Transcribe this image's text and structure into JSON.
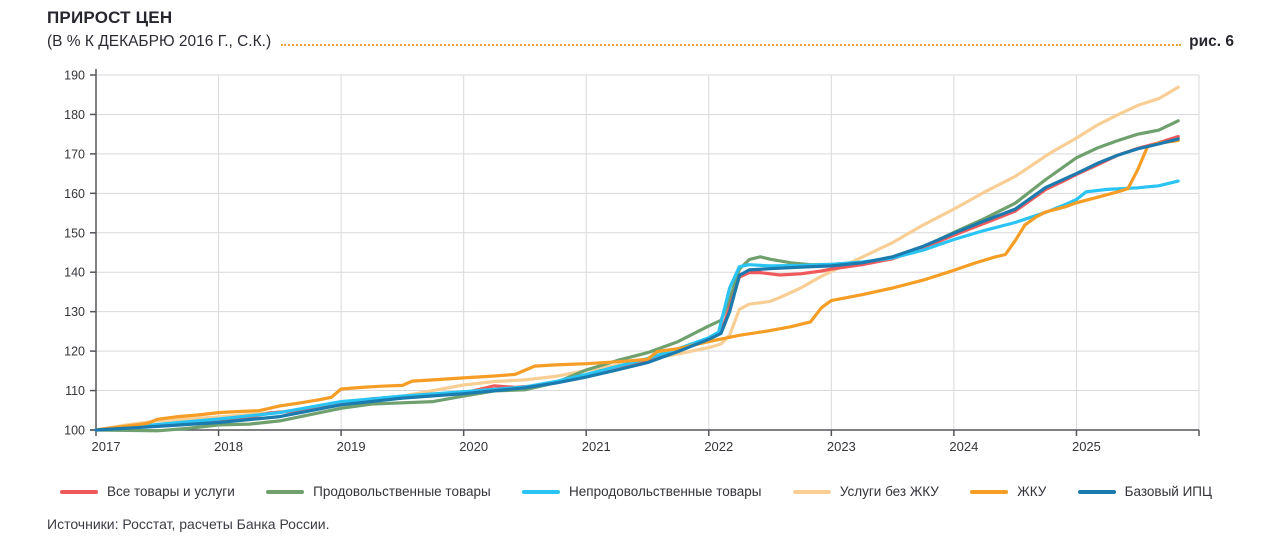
{
  "header": {
    "title": "ПРИРОСТ ЦЕН",
    "subtitle": "(В % К ДЕКАБРЮ 2016 Г., С.К.)",
    "figure_label": "рис. 6"
  },
  "source": "Источники: Росстат, расчеты Банка России.",
  "chart_data": {
    "type": "line",
    "title": "ПРИРОСТ ЦЕН (В % К ДЕКАБРЮ 2016 Г., С.К.)",
    "xlabel": "",
    "ylabel": "",
    "ylim": [
      100,
      190
    ],
    "xlim": [
      2017,
      2026
    ],
    "y_ticks": [
      100,
      110,
      120,
      130,
      140,
      150,
      160,
      170,
      180,
      190
    ],
    "x_ticks": [
      2017,
      2018,
      2019,
      2020,
      2021,
      2022,
      2023,
      2024,
      2025
    ],
    "grid": "both",
    "legend_position": "bottom",
    "axis_color": "#55555c",
    "grid_color": "#d9d9dc",
    "series": [
      {
        "name": "Все товары и услуги",
        "color": "#f0595c",
        "z": 2,
        "points": [
          [
            2017.0,
            100
          ],
          [
            2017.25,
            100.7
          ],
          [
            2017.5,
            101.2
          ],
          [
            2017.75,
            101.8
          ],
          [
            2018.0,
            102.5
          ],
          [
            2018.25,
            103.3
          ],
          [
            2018.42,
            104.3
          ],
          [
            2018.58,
            104.7
          ],
          [
            2018.75,
            105.4
          ],
          [
            2019.0,
            106.8
          ],
          [
            2019.25,
            107.9
          ],
          [
            2019.5,
            108.4
          ],
          [
            2019.75,
            108.9
          ],
          [
            2020.0,
            109.4
          ],
          [
            2020.17,
            110.6
          ],
          [
            2020.25,
            111.2
          ],
          [
            2020.42,
            110.8
          ],
          [
            2020.58,
            111.2
          ],
          [
            2020.75,
            112.1
          ],
          [
            2021.0,
            113.7
          ],
          [
            2021.25,
            115.4
          ],
          [
            2021.5,
            117.4
          ],
          [
            2021.75,
            120.2
          ],
          [
            2022.0,
            123.2
          ],
          [
            2022.1,
            124.8
          ],
          [
            2022.17,
            131
          ],
          [
            2022.25,
            138.8
          ],
          [
            2022.33,
            139.9
          ],
          [
            2022.42,
            139.9
          ],
          [
            2022.5,
            139.6
          ],
          [
            2022.58,
            139.3
          ],
          [
            2022.75,
            139.6
          ],
          [
            2022.92,
            140.3
          ],
          [
            2023.0,
            140.8
          ],
          [
            2023.25,
            141.9
          ],
          [
            2023.5,
            143.4
          ],
          [
            2023.75,
            146.2
          ],
          [
            2024.0,
            149.4
          ],
          [
            2024.25,
            152.4
          ],
          [
            2024.5,
            155.5
          ],
          [
            2024.75,
            161
          ],
          [
            2024.92,
            163.5
          ],
          [
            2025.0,
            164.8
          ],
          [
            2025.17,
            167.2
          ],
          [
            2025.33,
            169.6
          ],
          [
            2025.5,
            171.4
          ],
          [
            2025.67,
            172.8
          ],
          [
            2025.83,
            174.4
          ]
        ]
      },
      {
        "name": "Продовольственные товары",
        "color": "#6fa06e",
        "z": 1,
        "points": [
          [
            2017.0,
            100
          ],
          [
            2017.25,
            99.9
          ],
          [
            2017.5,
            99.8
          ],
          [
            2017.75,
            100.4
          ],
          [
            2018.0,
            101.3
          ],
          [
            2018.25,
            101.5
          ],
          [
            2018.5,
            102.3
          ],
          [
            2018.75,
            103.9
          ],
          [
            2019.0,
            105.5
          ],
          [
            2019.25,
            106.6
          ],
          [
            2019.5,
            106.9
          ],
          [
            2019.75,
            107.2
          ],
          [
            2020.0,
            108.6
          ],
          [
            2020.25,
            109.9
          ],
          [
            2020.5,
            110.2
          ],
          [
            2020.75,
            112
          ],
          [
            2021.0,
            115.2
          ],
          [
            2021.25,
            117.6
          ],
          [
            2021.5,
            119.6
          ],
          [
            2021.75,
            122.4
          ],
          [
            2022.0,
            126.4
          ],
          [
            2022.1,
            127.8
          ],
          [
            2022.17,
            133
          ],
          [
            2022.25,
            140.8
          ],
          [
            2022.33,
            143.2
          ],
          [
            2022.42,
            143.9
          ],
          [
            2022.5,
            143.3
          ],
          [
            2022.67,
            142.4
          ],
          [
            2022.83,
            141.9
          ],
          [
            2023.0,
            142
          ],
          [
            2023.25,
            142.4
          ],
          [
            2023.5,
            143.6
          ],
          [
            2023.75,
            146.4
          ],
          [
            2024.0,
            150.1
          ],
          [
            2024.25,
            153.6
          ],
          [
            2024.5,
            157.5
          ],
          [
            2024.75,
            163.5
          ],
          [
            2025.0,
            169
          ],
          [
            2025.17,
            171.5
          ],
          [
            2025.33,
            173.3
          ],
          [
            2025.5,
            175
          ],
          [
            2025.67,
            176
          ],
          [
            2025.83,
            178.4
          ]
        ]
      },
      {
        "name": "Непродовольственные товары",
        "color": "#2ac4f4",
        "z": 3,
        "points": [
          [
            2017.0,
            100
          ],
          [
            2017.5,
            101.4
          ],
          [
            2018.0,
            102.8
          ],
          [
            2018.5,
            104.4
          ],
          [
            2019.0,
            107.2
          ],
          [
            2019.5,
            108.6
          ],
          [
            2020.0,
            109.7
          ],
          [
            2020.5,
            110.9
          ],
          [
            2020.75,
            112.3
          ],
          [
            2021.0,
            114.1
          ],
          [
            2021.25,
            116.1
          ],
          [
            2021.5,
            118.1
          ],
          [
            2021.75,
            120.6
          ],
          [
            2022.0,
            123.4
          ],
          [
            2022.08,
            124.8
          ],
          [
            2022.17,
            136
          ],
          [
            2022.25,
            141.4
          ],
          [
            2022.33,
            141.9
          ],
          [
            2022.5,
            141.6
          ],
          [
            2022.75,
            141.7
          ],
          [
            2023.0,
            142
          ],
          [
            2023.25,
            142.6
          ],
          [
            2023.5,
            143.6
          ],
          [
            2023.75,
            145.6
          ],
          [
            2024.0,
            148.3
          ],
          [
            2024.25,
            150.6
          ],
          [
            2024.5,
            152.6
          ],
          [
            2024.75,
            155.2
          ],
          [
            2024.92,
            157.3
          ],
          [
            2025.0,
            158.4
          ],
          [
            2025.08,
            160.4
          ],
          [
            2025.25,
            161
          ],
          [
            2025.5,
            161.4
          ],
          [
            2025.67,
            161.9
          ],
          [
            2025.83,
            163.1
          ]
        ]
      },
      {
        "name": "Услуги без ЖКУ",
        "color": "#f8ce95",
        "z": 0,
        "points": [
          [
            2017.0,
            100
          ],
          [
            2017.25,
            101.3
          ],
          [
            2017.5,
            102.3
          ],
          [
            2017.75,
            102.8
          ],
          [
            2018.0,
            103.3
          ],
          [
            2018.25,
            103.9
          ],
          [
            2018.5,
            104.6
          ],
          [
            2018.75,
            105.4
          ],
          [
            2019.0,
            106.3
          ],
          [
            2019.25,
            107.3
          ],
          [
            2019.5,
            108.6
          ],
          [
            2019.75,
            110
          ],
          [
            2020.0,
            111.4
          ],
          [
            2020.25,
            112.3
          ],
          [
            2020.5,
            112.7
          ],
          [
            2020.75,
            113.6
          ],
          [
            2021.0,
            115.1
          ],
          [
            2021.25,
            116.4
          ],
          [
            2021.5,
            117.9
          ],
          [
            2021.75,
            119.3
          ],
          [
            2022.0,
            120.9
          ],
          [
            2022.1,
            121.8
          ],
          [
            2022.17,
            124
          ],
          [
            2022.25,
            130.6
          ],
          [
            2022.33,
            131.9
          ],
          [
            2022.5,
            132.6
          ],
          [
            2022.58,
            133.6
          ],
          [
            2022.75,
            136
          ],
          [
            2022.92,
            139
          ],
          [
            2023.0,
            140.2
          ],
          [
            2023.25,
            143.8
          ],
          [
            2023.5,
            147.5
          ],
          [
            2023.75,
            152
          ],
          [
            2024.0,
            156
          ],
          [
            2024.25,
            160.3
          ],
          [
            2024.5,
            164.3
          ],
          [
            2024.75,
            169.5
          ],
          [
            2024.83,
            171
          ],
          [
            2025.0,
            174
          ],
          [
            2025.17,
            177.3
          ],
          [
            2025.33,
            179.8
          ],
          [
            2025.5,
            182.3
          ],
          [
            2025.67,
            184
          ],
          [
            2025.83,
            186.9
          ]
        ]
      },
      {
        "name": "ЖКУ",
        "color": "#f59d25",
        "z": 4,
        "points": [
          [
            2017.0,
            100
          ],
          [
            2017.17,
            100.7
          ],
          [
            2017.33,
            101.3
          ],
          [
            2017.42,
            101.7
          ],
          [
            2017.5,
            102.7
          ],
          [
            2017.67,
            103.4
          ],
          [
            2017.83,
            103.8
          ],
          [
            2018.0,
            104.4
          ],
          [
            2018.17,
            104.7
          ],
          [
            2018.33,
            104.9
          ],
          [
            2018.5,
            106.1
          ],
          [
            2018.67,
            106.9
          ],
          [
            2018.83,
            107.7
          ],
          [
            2018.92,
            108.3
          ],
          [
            2019.0,
            110.4
          ],
          [
            2019.17,
            110.8
          ],
          [
            2019.33,
            111.1
          ],
          [
            2019.5,
            111.3
          ],
          [
            2019.58,
            112.4
          ],
          [
            2019.75,
            112.7
          ],
          [
            2020.0,
            113.2
          ],
          [
            2020.25,
            113.7
          ],
          [
            2020.42,
            114.1
          ],
          [
            2020.58,
            116.2
          ],
          [
            2020.75,
            116.5
          ],
          [
            2021.0,
            116.8
          ],
          [
            2021.25,
            117.3
          ],
          [
            2021.5,
            117.9
          ],
          [
            2021.58,
            119.9
          ],
          [
            2021.75,
            120.6
          ],
          [
            2022.0,
            122.4
          ],
          [
            2022.25,
            124
          ],
          [
            2022.5,
            125.2
          ],
          [
            2022.67,
            126.2
          ],
          [
            2022.83,
            127.4
          ],
          [
            2022.92,
            131
          ],
          [
            2023.0,
            132.8
          ],
          [
            2023.25,
            134.3
          ],
          [
            2023.5,
            136
          ],
          [
            2023.75,
            138
          ],
          [
            2024.0,
            140.5
          ],
          [
            2024.17,
            142.3
          ],
          [
            2024.33,
            143.8
          ],
          [
            2024.42,
            144.5
          ],
          [
            2024.5,
            148
          ],
          [
            2024.58,
            152
          ],
          [
            2024.67,
            154
          ],
          [
            2024.75,
            155.3
          ],
          [
            2024.92,
            156.7
          ],
          [
            2025.0,
            157.6
          ],
          [
            2025.17,
            159
          ],
          [
            2025.33,
            160.3
          ],
          [
            2025.42,
            161.2
          ],
          [
            2025.5,
            166
          ],
          [
            2025.58,
            171.8
          ],
          [
            2025.67,
            172.7
          ],
          [
            2025.83,
            173.4
          ]
        ]
      },
      {
        "name": "Базовый ИПЦ",
        "color": "#1b7bae",
        "z": 5,
        "points": [
          [
            2017.0,
            100
          ],
          [
            2017.5,
            100.9
          ],
          [
            2018.0,
            101.9
          ],
          [
            2018.5,
            103.4
          ],
          [
            2019.0,
            106.4
          ],
          [
            2019.5,
            108.1
          ],
          [
            2020.0,
            109.2
          ],
          [
            2020.5,
            110.7
          ],
          [
            2020.75,
            111.9
          ],
          [
            2021.0,
            113.4
          ],
          [
            2021.25,
            115.2
          ],
          [
            2021.5,
            117.1
          ],
          [
            2021.75,
            119.9
          ],
          [
            2022.0,
            123.0
          ],
          [
            2022.1,
            124.5
          ],
          [
            2022.17,
            130
          ],
          [
            2022.25,
            139.2
          ],
          [
            2022.33,
            140.6
          ],
          [
            2022.5,
            140.9
          ],
          [
            2022.75,
            141.3
          ],
          [
            2023.0,
            141.6
          ],
          [
            2023.25,
            142.4
          ],
          [
            2023.5,
            143.9
          ],
          [
            2023.75,
            146.6
          ],
          [
            2024.0,
            149.9
          ],
          [
            2024.25,
            153
          ],
          [
            2024.5,
            156
          ],
          [
            2024.75,
            161.5
          ],
          [
            2025.0,
            165
          ],
          [
            2025.17,
            167.6
          ],
          [
            2025.33,
            169.6
          ],
          [
            2025.5,
            171.3
          ],
          [
            2025.67,
            172.5
          ],
          [
            2025.83,
            173.8
          ]
        ]
      }
    ]
  }
}
